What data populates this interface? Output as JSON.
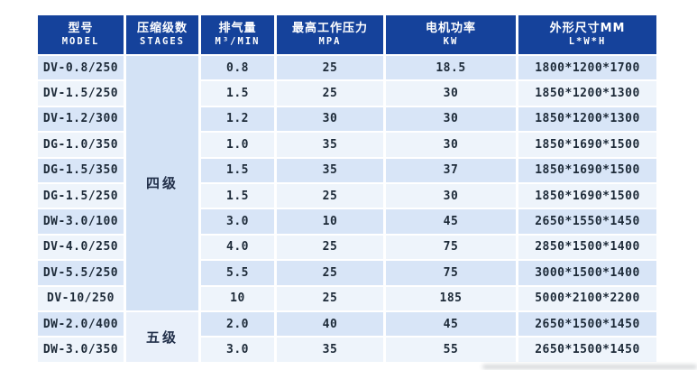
{
  "table": {
    "headers": [
      {
        "cn": "型号",
        "en": "MODEL"
      },
      {
        "cn": "压缩级数",
        "en": "STAGES"
      },
      {
        "cn": "排气量",
        "en": "M³/MIN"
      },
      {
        "cn": "最高工作压力",
        "en": "MPA"
      },
      {
        "cn": "电机功率",
        "en": "KW"
      },
      {
        "cn": "外形尺寸MM",
        "en": "L*W*H"
      }
    ],
    "stage_groups": [
      {
        "label": "四级",
        "row_span": 10
      },
      {
        "label": "五级",
        "row_span": 2
      }
    ],
    "rows": [
      {
        "model": "DV-0.8/250",
        "displacement": "0.8",
        "pressure": "25",
        "power": "18.5",
        "dimensions": "1800*1200*1700"
      },
      {
        "model": "DV-1.5/250",
        "displacement": "1.5",
        "pressure": "25",
        "power": "30",
        "dimensions": "1850*1200*1300"
      },
      {
        "model": "DV-1.2/300",
        "displacement": "1.2",
        "pressure": "30",
        "power": "30",
        "dimensions": "1850*1200*1300"
      },
      {
        "model": "DG-1.0/350",
        "displacement": "1.0",
        "pressure": "35",
        "power": "30",
        "dimensions": "1850*1690*1500"
      },
      {
        "model": "DG-1.5/350",
        "displacement": "1.5",
        "pressure": "35",
        "power": "37",
        "dimensions": "1850*1690*1500"
      },
      {
        "model": "DG-1.5/250",
        "displacement": "1.5",
        "pressure": "25",
        "power": "30",
        "dimensions": "1850*1690*1500"
      },
      {
        "model": "DW-3.0/100",
        "displacement": "3.0",
        "pressure": "10",
        "power": "45",
        "dimensions": "2650*1550*1450"
      },
      {
        "model": "DV-4.0/250",
        "displacement": "4.0",
        "pressure": "25",
        "power": "75",
        "dimensions": "2850*1500*1400"
      },
      {
        "model": "DV-5.5/250",
        "displacement": "5.5",
        "pressure": "25",
        "power": "75",
        "dimensions": "3000*1500*1400"
      },
      {
        "model": "DV-10/250",
        "displacement": "10",
        "pressure": "25",
        "power": "185",
        "dimensions": "5000*2100*2200"
      },
      {
        "model": "DW-2.0/400",
        "displacement": "2.0",
        "pressure": "40",
        "power": "45",
        "dimensions": "2650*1500*1450"
      },
      {
        "model": "DW-3.0/350",
        "displacement": "3.0",
        "pressure": "35",
        "power": "55",
        "dimensions": "2650*1500*1450"
      }
    ],
    "colors": {
      "header_bg": "#15429b",
      "header_text": "#ffffff",
      "row_odd_bg": "#d8e5f7",
      "row_even_bg": "#eef4fb",
      "stage_four_bg": "#d3e2f5",
      "stage_five_bg": "#e9f0fa",
      "cell_text": "#1d2a38"
    }
  }
}
